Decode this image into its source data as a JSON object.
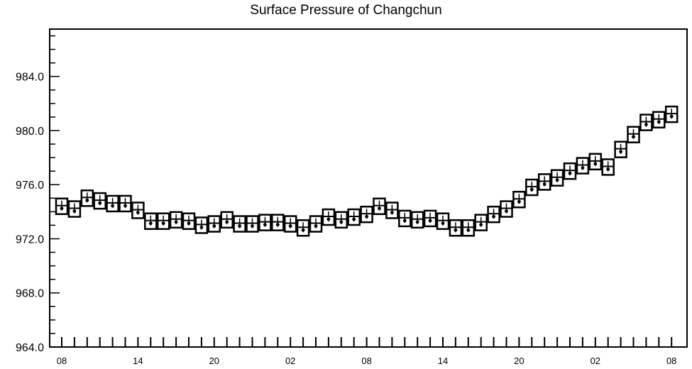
{
  "chart_data": {
    "type": "scatter",
    "title": "Surface Pressure of Changchun",
    "xlabel": "",
    "ylabel": "",
    "ylim": [
      964.0,
      987.5
    ],
    "y_ticks": [
      "964.0",
      "968.0",
      "972.0",
      "976.0",
      "980.0",
      "984.0"
    ],
    "x_tick_labels": [
      "08",
      "14",
      "20",
      "02",
      "08",
      "14",
      "20",
      "02",
      "08"
    ],
    "x_tick_hour_index": [
      0,
      6,
      12,
      18,
      24,
      30,
      36,
      42,
      48
    ],
    "hours": 48,
    "grid": false,
    "marker": "boxed station symbol",
    "series": [
      {
        "values": [
          974.4,
          974.2,
          975.0,
          974.8,
          974.6,
          974.6,
          974.1,
          973.3,
          973.3,
          973.4,
          973.3,
          973.0,
          973.1,
          973.4,
          973.1,
          973.1,
          973.2,
          973.2,
          973.1,
          972.8,
          973.1,
          973.6,
          973.4,
          973.6,
          973.8,
          974.4,
          974.1,
          973.5,
          973.4,
          973.5,
          973.3,
          972.8,
          972.8,
          973.2,
          973.8,
          974.2,
          974.9,
          975.8,
          976.2,
          976.5,
          977.0,
          977.4,
          977.7,
          977.3,
          978.6,
          979.7,
          980.6,
          980.8,
          981.2
        ]
      }
    ]
  }
}
